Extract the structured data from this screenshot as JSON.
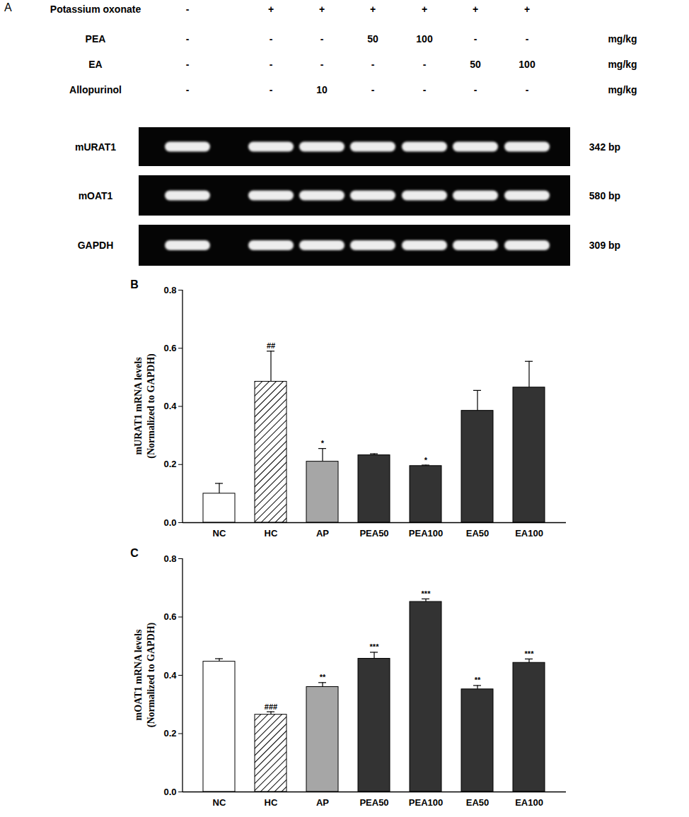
{
  "gel": {
    "panel": "A",
    "treatments": [
      {
        "name": "Potassium oxonate",
        "doses": [
          "-",
          "+",
          "+",
          "+",
          "+",
          "+",
          "+"
        ]
      },
      {
        "name": "PEA",
        "doses": [
          "-",
          "-",
          "-",
          "50",
          "100",
          "-",
          "-"
        ],
        "unit": "mg/kg"
      },
      {
        "name": "EA",
        "doses": [
          "-",
          "-",
          "-",
          "-",
          "-",
          "50",
          "100"
        ],
        "unit": "mg/kg"
      },
      {
        "name": "Allopurinol",
        "doses": [
          "-",
          "-",
          "10",
          "-",
          "-",
          "-",
          "-"
        ],
        "unit": "mg/kg"
      }
    ],
    "genes": [
      {
        "name": "mURAT1",
        "size": "342 bp"
      },
      {
        "name": "mOAT1",
        "size": "580 bp"
      },
      {
        "name": "GAPDH",
        "size": "309 bp"
      }
    ]
  },
  "chart_data": [
    {
      "type": "bar",
      "panel": "B",
      "ylabel": [
        "mURAT1 mRNA levels",
        "(Normalized to GAPDH)"
      ],
      "categories": [
        "NC",
        "HC",
        "AP",
        "PEA50",
        "PEA100",
        "EA50",
        "EA100"
      ],
      "values": [
        0.1,
        0.485,
        0.21,
        0.232,
        0.195,
        0.385,
        0.465
      ],
      "errors": [
        0.035,
        0.105,
        0.045,
        0.005,
        0.003,
        0.07,
        0.09
      ],
      "significance": [
        null,
        "##",
        "*",
        null,
        "*",
        null,
        null
      ],
      "colors": [
        "#ffffff",
        "hatch",
        "#a6a6a6",
        "#333333",
        "#333333",
        "#333333",
        "#333333"
      ],
      "ylim": [
        0,
        0.8
      ],
      "yticks": [
        {
          "value": 0,
          "label": "0.0"
        },
        {
          "value": 0.2,
          "label": "0.2"
        },
        {
          "value": 0.4,
          "label": "0.4"
        },
        {
          "value": 0.6,
          "label": "0.6"
        },
        {
          "value": 0.8,
          "label": "0.8"
        }
      ]
    },
    {
      "type": "bar",
      "panel": "C",
      "ylabel": [
        "mOAT1 mRNA levels",
        "(Normalized to GAPDH)"
      ],
      "categories": [
        "NC",
        "HC",
        "AP",
        "PEA50",
        "PEA100",
        "EA50",
        "EA100"
      ],
      "values": [
        0.447,
        0.265,
        0.36,
        0.457,
        0.652,
        0.352,
        0.443
      ],
      "errors": [
        0.01,
        0.01,
        0.015,
        0.022,
        0.01,
        0.013,
        0.013
      ],
      "significance": [
        null,
        "###",
        "**",
        "***",
        "***",
        "**",
        "***"
      ],
      "colors": [
        "#ffffff",
        "hatch",
        "#a6a6a6",
        "#333333",
        "#333333",
        "#333333",
        "#333333"
      ],
      "ylim": [
        0,
        0.8
      ],
      "yticks": [
        {
          "value": 0,
          "label": "0.0"
        },
        {
          "value": 0.2,
          "label": "0.2"
        },
        {
          "value": 0.4,
          "label": "0.4"
        },
        {
          "value": 0.6,
          "label": "0.6"
        },
        {
          "value": 0.8,
          "label": "0.8"
        }
      ]
    }
  ]
}
